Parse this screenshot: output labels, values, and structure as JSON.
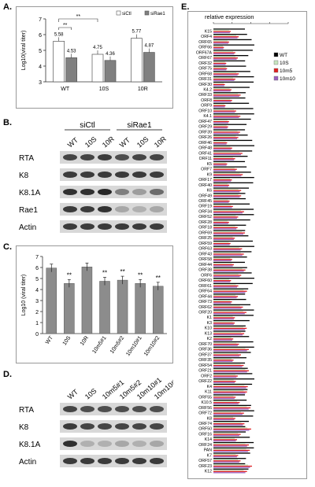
{
  "panels": {
    "A": "A.",
    "B": "B.",
    "C": "C.",
    "D": "D.",
    "E": "E."
  },
  "chart_data": [
    {
      "type": "bar",
      "panel": "A",
      "ylabel": "Log10(viral titer)",
      "ylim": [
        3,
        7
      ],
      "yticks": [
        "3",
        "4",
        "5",
        "6",
        "7"
      ],
      "categories": [
        "WT",
        "10S",
        "10R"
      ],
      "series": [
        {
          "name": "siCtl",
          "color": "#ffffff",
          "values": [
            5.58,
            4.75,
            5.77
          ]
        },
        {
          "name": "siRae1",
          "color": "#808080",
          "values": [
            4.53,
            4.36,
            4.87
          ]
        }
      ],
      "bar_labels": [
        [
          "5.58",
          "4.75",
          "5.77"
        ],
        [
          "4.53",
          "4.36",
          "4.87"
        ]
      ],
      "significance": [
        "**",
        "**"
      ]
    },
    {
      "type": "bar",
      "panel": "C",
      "ylabel": "Log10 (viral titer)",
      "ylim": [
        0,
        7
      ],
      "yticks": [
        "0",
        "1",
        "2",
        "3",
        "4",
        "5",
        "6",
        "7"
      ],
      "categories": [
        "WT",
        "10S",
        "10R",
        "10m5#1",
        "10m5#2",
        "10m10#1",
        "10m10#2"
      ],
      "values": [
        5.95,
        4.55,
        6.05,
        4.75,
        4.85,
        4.55,
        4.3
      ],
      "significance": [
        "",
        "**",
        "",
        "**",
        "**",
        "**",
        "**"
      ]
    },
    {
      "type": "bar",
      "panel": "E",
      "title": "relative expression",
      "series": [
        {
          "name": "WT",
          "color": "#000000"
        },
        {
          "name": "10S",
          "color": "#c8e6c0"
        },
        {
          "name": "10m5",
          "color": "#e02020"
        },
        {
          "name": "10m10",
          "color": "#9a5fc0"
        }
      ],
      "categories": [
        "K15",
        "ORF4",
        "ORF65",
        "ORF66",
        "ORF67A",
        "ORF67",
        "ORF32",
        "ORF75",
        "ORF68",
        "ORF31",
        "ORF30",
        "K4.2",
        "ORF33",
        "ORF8",
        "ORF9",
        "ORF10",
        "K4.1",
        "ORF47",
        "ORF29",
        "ORF39",
        "ORF26",
        "ORF46",
        "ORF48",
        "ORF41",
        "ORF11",
        "K5",
        "ORF7",
        "K9",
        "ORF17",
        "ORF40",
        "K6",
        "ORF49",
        "ORF45",
        "ORF19",
        "ORF34",
        "ORF52",
        "ORF28",
        "ORF18",
        "ORF69",
        "ORF25",
        "ORF59",
        "ORF63",
        "ORF43",
        "ORF58",
        "ORF44",
        "ORF38",
        "ORF6",
        "ORF60",
        "ORF61",
        "ORF64",
        "ORF44",
        "ORF73",
        "ORF62",
        "ORF20",
        "K1",
        "K3",
        "K10",
        "K13",
        "K2",
        "ORF70",
        "ORF36",
        "ORF37",
        "ORF35",
        "ORF54",
        "ORF21",
        "ORF2",
        "ORF22",
        "K4",
        "K11",
        "ORF55",
        "K10.5",
        "ORF56",
        "ORF72",
        "K8",
        "ORF74",
        "ORF50",
        "ORF16",
        "K14",
        "ORF24",
        "PAN",
        "K7",
        "ORF57",
        "ORF23",
        "K12"
      ]
    }
  ],
  "blotB": {
    "groups": [
      "siCtl",
      "siRae1"
    ],
    "lanes": [
      "WT",
      "10S",
      "10R",
      "WT",
      "10S",
      "10R"
    ],
    "rows": [
      "RTA",
      "K8",
      "K8.1A",
      "Rae1",
      "Actin"
    ]
  },
  "blotD": {
    "lanes": [
      "WT",
      "10S",
      "10m5#1",
      "10m5#2",
      "10m10#1",
      "10m10#2"
    ],
    "rows": [
      "RTA",
      "K8",
      "K8.1A",
      "Actin"
    ]
  }
}
